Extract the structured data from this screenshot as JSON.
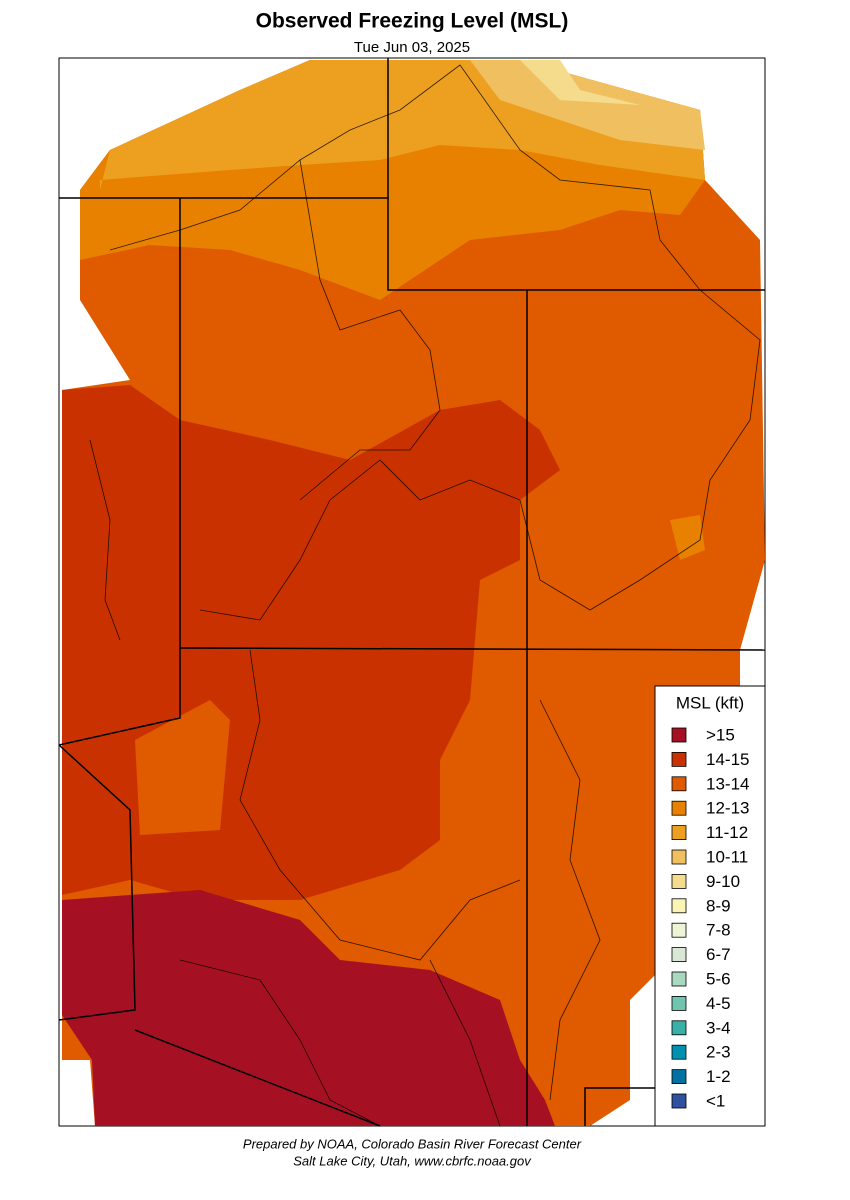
{
  "title": "Observed Freezing Level (MSL)",
  "subtitle": "Tue Jun 03, 2025",
  "legend": {
    "title": "MSL (kft)",
    "items": [
      {
        "label": ">15",
        "color": "#a51122"
      },
      {
        "label": "14-15",
        "color": "#c93200"
      },
      {
        "label": "13-14",
        "color": "#e05a00"
      },
      {
        "label": "12-13",
        "color": "#e88000"
      },
      {
        "label": "11-12",
        "color": "#eda020"
      },
      {
        "label": "10-11",
        "color": "#f0c060"
      },
      {
        "label": "9-10",
        "color": "#f5dc8c"
      },
      {
        "label": "8-9",
        "color": "#fbf5b5"
      },
      {
        "label": "7-8",
        "color": "#eef5d6"
      },
      {
        "label": "6-7",
        "color": "#d8e8d4"
      },
      {
        "label": "5-6",
        "color": "#a8d8c0"
      },
      {
        "label": "4-5",
        "color": "#70c4b0"
      },
      {
        "label": "3-4",
        "color": "#38b0a8"
      },
      {
        "label": "2-3",
        "color": "#0090b0"
      },
      {
        "label": "1-2",
        "color": "#0070a0"
      },
      {
        "label": "<1",
        "color": "#3050a0"
      }
    ]
  },
  "footer": {
    "line1": "Prepared by NOAA, Colorado Basin River Forecast Center",
    "line2": "Salt Lake City, Utah, www.cbrfc.noaa.gov"
  }
}
